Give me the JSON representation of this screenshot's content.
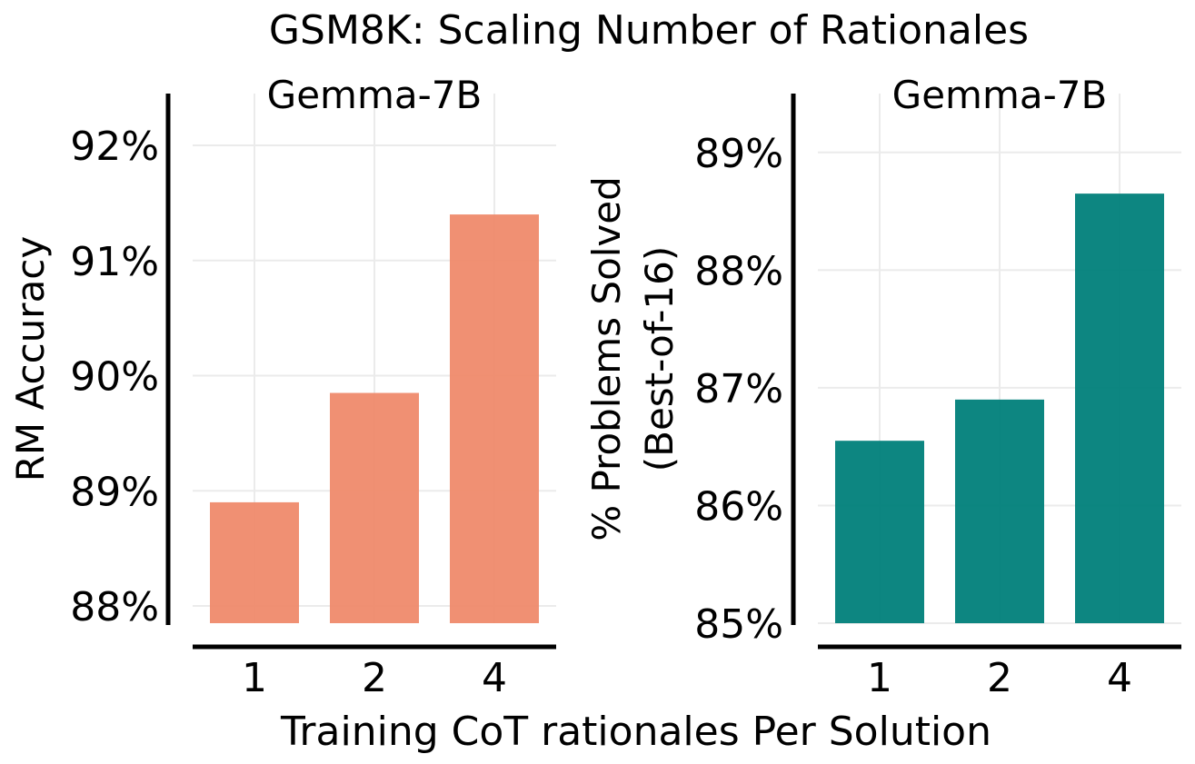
{
  "figure": {
    "suptitle": "GSM8K: Scaling Number of Rationales",
    "xlabel": "Training CoT rationales Per Solution"
  },
  "chart_data": [
    {
      "type": "bar",
      "title": "Gemma-7B",
      "xlabel": "",
      "ylabel": "RM Accuracy",
      "categories": [
        "1",
        "2",
        "4"
      ],
      "values": [
        88.9,
        89.85,
        91.4
      ],
      "ylim": [
        87.85,
        92.45
      ],
      "yticks": [
        88,
        89,
        90,
        91,
        92
      ],
      "ytick_labels": [
        "88%",
        "89%",
        "90%",
        "91%",
        "92%"
      ],
      "color": "#ef8a6b",
      "grid": true
    },
    {
      "type": "bar",
      "title": "Gemma-7B",
      "xlabel": "",
      "ylabel": [
        "% Problems Solved",
        "(Best-of-16)"
      ],
      "categories": [
        "1",
        "2",
        "4"
      ],
      "values": [
        86.55,
        86.9,
        88.65
      ],
      "ylim": [
        85.0,
        89.5
      ],
      "yticks": [
        85,
        86,
        87,
        88,
        89
      ],
      "ytick_labels": [
        "85%",
        "86%",
        "87%",
        "88%",
        "89%"
      ],
      "color": "#00807a",
      "grid": true
    }
  ]
}
